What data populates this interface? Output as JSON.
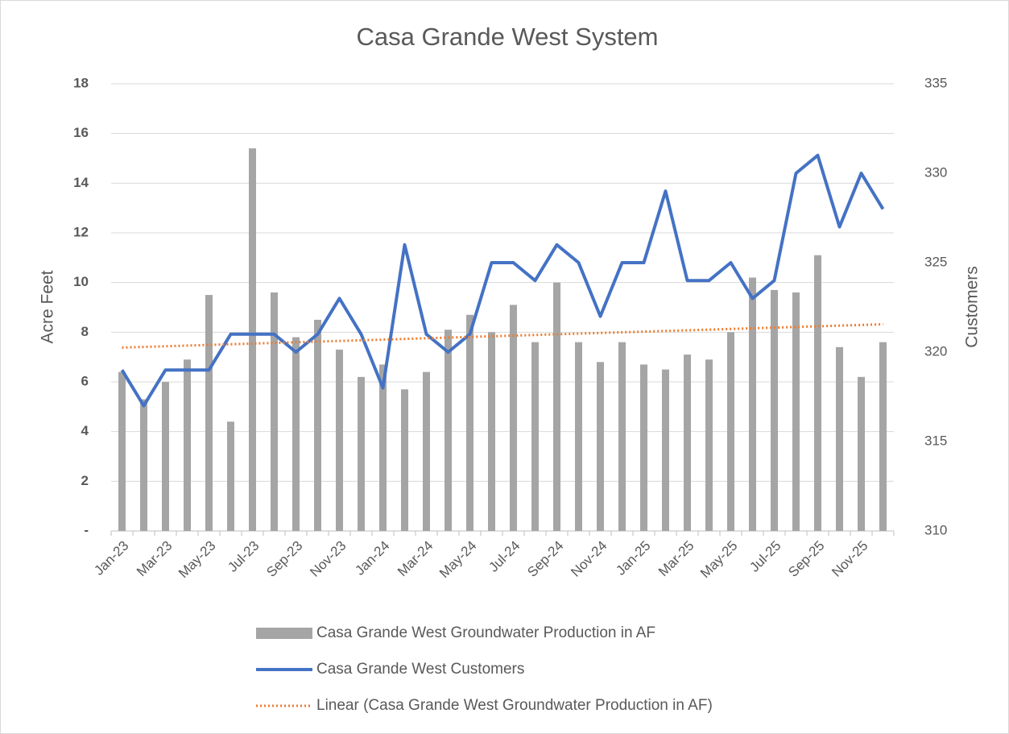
{
  "chart_data": {
    "type": "bar-line",
    "title": "Casa Grande West System",
    "y_label": "Acre Feet",
    "y2_label": "Customers",
    "categories": [
      "Jan-23",
      null,
      "Mar-23",
      null,
      "May-23",
      null,
      "Jul-23",
      null,
      "Sep-23",
      null,
      "Nov-23",
      null,
      "Jan-24",
      null,
      "Mar-24",
      null,
      "May-24",
      null,
      "Jul-24",
      null,
      "Sep-24",
      null,
      "Nov-24",
      null,
      "Jan-25",
      null,
      "Mar-25",
      null,
      "May-25",
      null,
      "Jul-25",
      null,
      "Sep-25",
      null,
      "Nov-25",
      null
    ],
    "series": [
      {
        "name": "Casa Grande West Groundwater Production in AF",
        "type": "bar",
        "color": "#a5a5a5",
        "values": [
          6.4,
          5.3,
          6.0,
          6.9,
          9.5,
          4.4,
          15.4,
          9.6,
          7.8,
          8.5,
          7.3,
          6.2,
          6.7,
          5.7,
          6.4,
          8.1,
          8.7,
          8.0,
          9.1,
          7.6,
          10.0,
          7.6,
          6.8,
          7.6,
          6.7,
          6.5,
          7.1,
          6.9,
          8.0,
          10.2,
          9.7,
          9.6,
          11.1,
          7.4,
          6.2,
          7.6
        ]
      },
      {
        "name": "Casa Grande West Customers",
        "type": "line",
        "axis": "y2",
        "color": "#4472c4",
        "values": [
          319,
          317,
          319,
          319,
          319,
          321,
          321,
          321,
          320,
          321,
          323,
          321,
          318,
          326,
          321,
          320,
          321,
          325,
          325,
          324,
          326,
          325,
          322,
          325,
          325,
          329,
          324,
          324,
          325,
          323,
          324,
          330,
          331,
          327,
          330,
          328
        ]
      },
      {
        "name": "Linear (Casa Grande West Groundwater Production in AF)",
        "type": "trendline",
        "color": "#ed7d31"
      }
    ],
    "ylim": [
      0,
      18
    ],
    "yticks": [
      {
        "value": 0,
        "label": "-"
      },
      2,
      4,
      6,
      8,
      10,
      12,
      14,
      16,
      18
    ],
    "y2lim": [
      310,
      335
    ],
    "y2ticks": [
      310,
      315,
      320,
      325,
      330,
      335
    ],
    "grid": true
  }
}
